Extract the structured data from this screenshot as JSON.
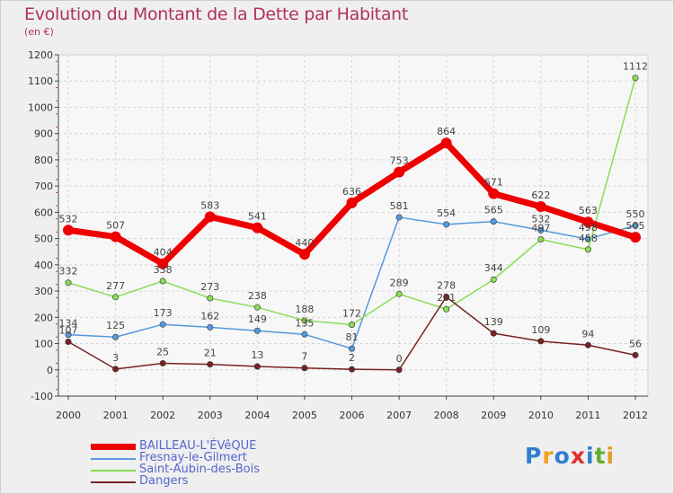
{
  "header": {
    "title": "Evolution du Montant de la Dette par Habitant",
    "unit": "(en €)"
  },
  "logo": {
    "text": "Proxiti",
    "colors": [
      "#2f7fd0",
      "#f0a020",
      "#2f7fd0",
      "#e03030",
      "#2f7fd0",
      "#60b030",
      "#e0a020"
    ]
  },
  "chart_data": {
    "type": "line",
    "x": [
      "2000",
      "2001",
      "2002",
      "2003",
      "2004",
      "2005",
      "2006",
      "2007",
      "2008",
      "2009",
      "2010",
      "2011",
      "2012"
    ],
    "ylim": [
      -100,
      1200
    ],
    "yticks": [
      -100,
      0,
      100,
      200,
      300,
      400,
      500,
      600,
      700,
      800,
      900,
      1000,
      1100,
      1200
    ],
    "grid": true,
    "legend_position": "bottom-left",
    "series": [
      {
        "name": "BAILLEAU-L'ÉVêQUE",
        "color": "#ee0000",
        "values": [
          532,
          507,
          404,
          583,
          541,
          440,
          636,
          753,
          864,
          671,
          622,
          563,
          505
        ],
        "labels": [
          "532",
          "507",
          "404",
          "583",
          "541",
          "440",
          "636",
          "753",
          "864",
          "671",
          "622",
          "563",
          "505"
        ]
      },
      {
        "name": "Fresnay-le-Gilmert",
        "color": "#5599dd",
        "values": [
          134,
          125,
          173,
          162,
          149,
          135,
          81,
          581,
          554,
          565,
          532,
          498,
          550
        ],
        "labels": [
          "134",
          "125",
          "173",
          "162",
          "149",
          "135",
          "81",
          "581",
          "554",
          "565",
          "532",
          "498",
          "550"
        ]
      },
      {
        "name": "Saint-Aubin-des-Bois",
        "color": "#88dd55",
        "values": [
          332,
          277,
          338,
          273,
          238,
          188,
          172,
          289,
          231,
          344,
          497,
          458,
          1112
        ],
        "labels": [
          "332",
          "277",
          "338",
          "273",
          "238",
          "188",
          "172",
          "289",
          "231",
          "344",
          "497",
          "458",
          "1112"
        ]
      },
      {
        "name": "Dangers",
        "color": "#772222",
        "values": [
          107,
          3,
          25,
          21,
          13,
          7,
          2,
          0,
          278,
          139,
          109,
          94,
          56
        ],
        "labels": [
          "107",
          "3",
          "25",
          "21",
          "13",
          "7",
          "2",
          "0",
          "278",
          "139",
          "109",
          "94",
          "56"
        ]
      }
    ]
  }
}
